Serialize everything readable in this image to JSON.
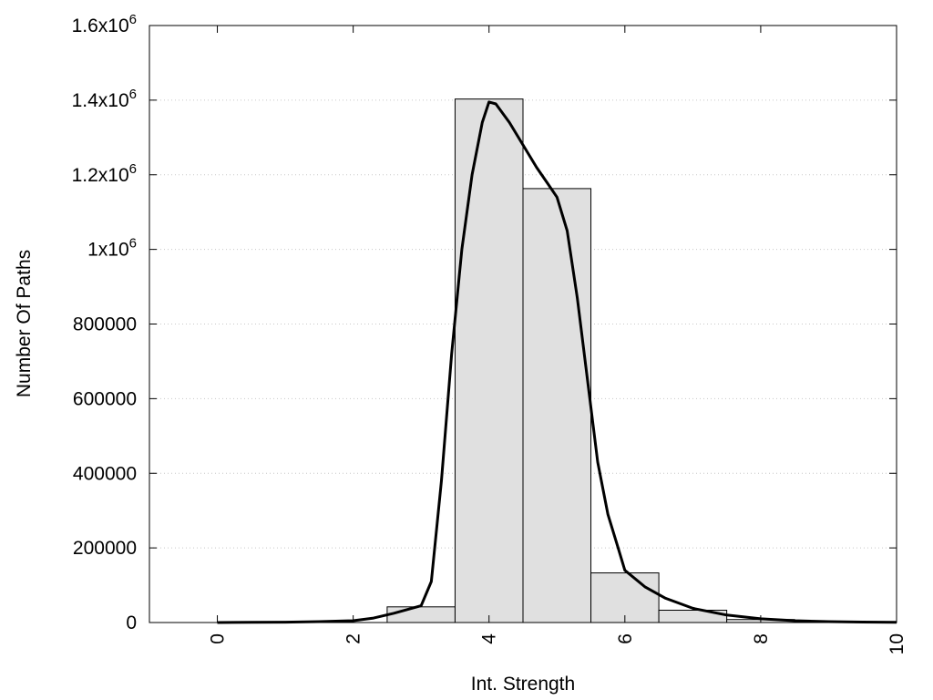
{
  "chart_data": {
    "type": "bar",
    "xlabel": "Int. Strength",
    "ylabel": "Number Of Paths",
    "xlim": [
      -1,
      10
    ],
    "ylim": [
      0,
      1600000
    ],
    "grid": true,
    "x_ticks": [
      {
        "value": 0,
        "label": "0"
      },
      {
        "value": 2,
        "label": "2"
      },
      {
        "value": 4,
        "label": "4"
      },
      {
        "value": 6,
        "label": "6"
      },
      {
        "value": 8,
        "label": "8"
      },
      {
        "value": 10,
        "label": "10"
      }
    ],
    "y_ticks": [
      {
        "value": 0,
        "label": "0"
      },
      {
        "value": 200000,
        "label": "200000"
      },
      {
        "value": 400000,
        "label": "400000"
      },
      {
        "value": 600000,
        "label": "600000"
      },
      {
        "value": 800000,
        "label": "800000"
      },
      {
        "value": 1000000,
        "label": "1x10",
        "sup": "6"
      },
      {
        "value": 1200000,
        "label": "1.2x10",
        "sup": "6"
      },
      {
        "value": 1400000,
        "label": "1.4x10",
        "sup": "6"
      },
      {
        "value": 1600000,
        "label": "1.6x10",
        "sup": "6"
      }
    ],
    "histogram": {
      "bin_width": 1,
      "bins": [
        {
          "center": 0,
          "value": 0
        },
        {
          "center": 1,
          "value": 0
        },
        {
          "center": 2,
          "value": 0
        },
        {
          "center": 3,
          "value": 42000
        },
        {
          "center": 4,
          "value": 1403000
        },
        {
          "center": 5,
          "value": 1163000
        },
        {
          "center": 6,
          "value": 133000
        },
        {
          "center": 7,
          "value": 33000
        },
        {
          "center": 8,
          "value": 8000
        },
        {
          "center": 9,
          "value": 2000
        },
        {
          "center": 10,
          "value": 0
        }
      ],
      "fill": "#e0e0e0",
      "stroke": "#000000"
    },
    "fit_curve": {
      "x": [
        0,
        0.5,
        1,
        1.5,
        2,
        2.3,
        2.6,
        2.8,
        3.0,
        3.15,
        3.3,
        3.45,
        3.6,
        3.75,
        3.9,
        4.0,
        4.1,
        4.3,
        4.5,
        4.7,
        4.85,
        5.0,
        5.15,
        5.3,
        5.45,
        5.6,
        5.75,
        5.9,
        6.0,
        6.3,
        6.6,
        7.0,
        7.5,
        8.0,
        8.5,
        9.0,
        9.5,
        10.0
      ],
      "y": [
        0,
        500,
        1000,
        2500,
        5000,
        12000,
        25000,
        35000,
        45000,
        110000,
        380000,
        720000,
        1000000,
        1200000,
        1340000,
        1395000,
        1390000,
        1340000,
        1280000,
        1220000,
        1180000,
        1140000,
        1050000,
        870000,
        650000,
        430000,
        290000,
        200000,
        140000,
        95000,
        65000,
        38000,
        20000,
        10000,
        5000,
        2500,
        1200,
        500
      ],
      "color": "#000000"
    }
  }
}
